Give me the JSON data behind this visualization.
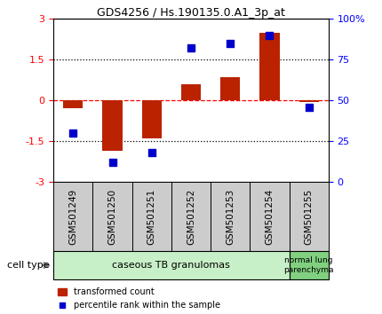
{
  "title": "GDS4256 / Hs.190135.0.A1_3p_at",
  "samples": [
    "GSM501249",
    "GSM501250",
    "GSM501251",
    "GSM501252",
    "GSM501253",
    "GSM501254",
    "GSM501255"
  ],
  "red_values": [
    -0.3,
    -1.85,
    -1.38,
    0.6,
    0.85,
    2.5,
    -0.05
  ],
  "blue_values": [
    30,
    12,
    18,
    82,
    85,
    90,
    46
  ],
  "ylim_left": [
    -3,
    3
  ],
  "ylim_right": [
    0,
    100
  ],
  "left_ticks": [
    -3,
    -1.5,
    0,
    1.5,
    3
  ],
  "right_ticks": [
    0,
    25,
    50,
    75,
    100
  ],
  "bar_color": "#bb2200",
  "dot_color": "#0000cc",
  "n_group1": 6,
  "n_group2": 1,
  "group1_label": "caseous TB granulomas",
  "group2_label": "normal lung\nparenchyma",
  "group1_color": "#c8f0c8",
  "group2_color": "#80d080",
  "cell_type_label": "cell type",
  "legend_red": "transformed count",
  "legend_blue": "percentile rank within the sample",
  "bar_width": 0.5,
  "dot_size": 35,
  "sample_box_color": "#cccccc",
  "title_fontsize": 9,
  "tick_fontsize": 8,
  "label_fontsize": 7.5,
  "legend_fontsize": 7
}
